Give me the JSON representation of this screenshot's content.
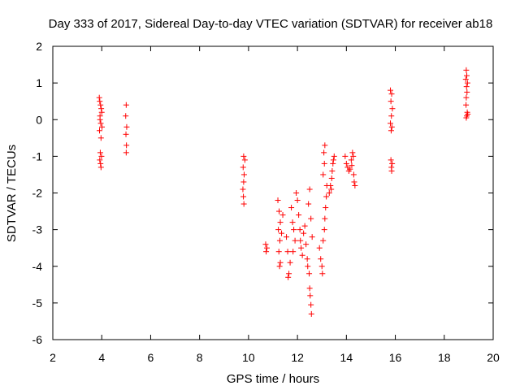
{
  "chart_data": {
    "type": "scatter",
    "title": "Day 333 of 2017, Sidereal Day-to-day VTEC variation (SDTVAR) for receiver ab18",
    "xlabel": "GPS time / hours",
    "ylabel": "SDTVAR / TECUs",
    "xlim": [
      2,
      20
    ],
    "ylim": [
      -6,
      2
    ],
    "xticks": [
      2,
      4,
      6,
      8,
      10,
      12,
      14,
      16,
      18,
      20
    ],
    "yticks": [
      -6,
      -5,
      -4,
      -3,
      -2,
      -1,
      0,
      1,
      2
    ],
    "grid": false,
    "marker": "+",
    "marker_color": "#ff0000",
    "series": [
      {
        "name": "SDTVAR",
        "points": [
          [
            3.9,
            0.6
          ],
          [
            3.92,
            0.5
          ],
          [
            3.95,
            0.4
          ],
          [
            3.98,
            0.3
          ],
          [
            4.0,
            0.2
          ],
          [
            3.93,
            0.1
          ],
          [
            3.96,
            -0.1
          ],
          [
            3.91,
            -0.3
          ],
          [
            3.97,
            -0.5
          ],
          [
            3.94,
            -0.9
          ],
          [
            3.99,
            -1.0
          ],
          [
            3.92,
            -1.1
          ],
          [
            3.95,
            -1.2
          ],
          [
            3.97,
            -1.3
          ],
          [
            3.93,
            0.0
          ],
          [
            4.01,
            -0.2
          ],
          [
            5.0,
            0.4
          ],
          [
            4.98,
            0.1
          ],
          [
            5.02,
            -0.2
          ],
          [
            4.99,
            -0.4
          ],
          [
            5.01,
            -0.7
          ],
          [
            5.0,
            -0.9
          ],
          [
            9.8,
            -1.0
          ],
          [
            9.85,
            -1.1
          ],
          [
            9.78,
            -1.3
          ],
          [
            9.82,
            -1.5
          ],
          [
            9.8,
            -1.7
          ],
          [
            9.77,
            -1.9
          ],
          [
            9.79,
            -2.1
          ],
          [
            9.81,
            -2.3
          ],
          [
            10.7,
            -3.4
          ],
          [
            10.75,
            -3.5
          ],
          [
            10.72,
            -3.6
          ],
          [
            11.2,
            -2.2
          ],
          [
            11.25,
            -2.5
          ],
          [
            11.3,
            -2.8
          ],
          [
            11.22,
            -3.0
          ],
          [
            11.28,
            -3.3
          ],
          [
            11.24,
            -3.6
          ],
          [
            11.3,
            -3.9
          ],
          [
            11.27,
            -4.0
          ],
          [
            11.35,
            -3.1
          ],
          [
            11.4,
            -2.6
          ],
          [
            11.55,
            -3.2
          ],
          [
            11.6,
            -3.6
          ],
          [
            11.65,
            -4.2
          ],
          [
            11.62,
            -4.3
          ],
          [
            11.7,
            -3.9
          ],
          [
            11.75,
            -2.4
          ],
          [
            11.8,
            -2.8
          ],
          [
            11.85,
            -3.0
          ],
          [
            11.9,
            -3.3
          ],
          [
            11.82,
            -3.6
          ],
          [
            11.95,
            -2.0
          ],
          [
            12.0,
            -2.2
          ],
          [
            12.05,
            -2.6
          ],
          [
            12.1,
            -3.0
          ],
          [
            12.12,
            -3.3
          ],
          [
            12.15,
            -3.5
          ],
          [
            12.2,
            -3.7
          ],
          [
            12.25,
            -3.1
          ],
          [
            12.3,
            -2.9
          ],
          [
            12.35,
            -3.4
          ],
          [
            12.4,
            -3.8
          ],
          [
            12.45,
            -2.3
          ],
          [
            12.5,
            -1.9
          ],
          [
            12.55,
            -2.7
          ],
          [
            12.6,
            -3.2
          ],
          [
            12.42,
            -4.0
          ],
          [
            12.48,
            -4.2
          ],
          [
            12.5,
            -4.6
          ],
          [
            12.52,
            -4.8
          ],
          [
            12.55,
            -5.05
          ],
          [
            12.57,
            -5.3
          ],
          [
            12.9,
            -3.5
          ],
          [
            12.95,
            -3.8
          ],
          [
            13.0,
            -4.0
          ],
          [
            13.02,
            -4.2
          ],
          [
            13.05,
            -3.3
          ],
          [
            13.1,
            -3.0
          ],
          [
            13.12,
            -2.7
          ],
          [
            13.15,
            -2.4
          ],
          [
            13.18,
            -2.1
          ],
          [
            13.2,
            -1.8
          ],
          [
            13.05,
            -1.5
          ],
          [
            13.1,
            -1.2
          ],
          [
            13.08,
            -0.9
          ],
          [
            13.12,
            -0.7
          ],
          [
            13.3,
            -2.0
          ],
          [
            13.35,
            -1.8
          ],
          [
            13.4,
            -1.6
          ],
          [
            13.42,
            -1.4
          ],
          [
            13.45,
            -1.2
          ],
          [
            13.5,
            -1.0
          ],
          [
            13.38,
            -1.9
          ],
          [
            13.47,
            -1.1
          ],
          [
            13.95,
            -1.0
          ],
          [
            14.0,
            -1.2
          ],
          [
            14.05,
            -1.3
          ],
          [
            14.1,
            -1.4
          ],
          [
            14.2,
            -1.1
          ],
          [
            14.25,
            -0.9
          ],
          [
            14.3,
            -1.5
          ],
          [
            14.32,
            -1.7
          ],
          [
            14.35,
            -1.8
          ],
          [
            14.28,
            -1.0
          ],
          [
            14.22,
            -1.25
          ],
          [
            14.15,
            -1.35
          ],
          [
            15.8,
            0.8
          ],
          [
            15.85,
            0.7
          ],
          [
            15.82,
            0.5
          ],
          [
            15.88,
            0.3
          ],
          [
            15.84,
            0.1
          ],
          [
            15.8,
            -0.1
          ],
          [
            15.86,
            -0.2
          ],
          [
            15.83,
            -0.3
          ],
          [
            15.82,
            -1.1
          ],
          [
            15.87,
            -1.2
          ],
          [
            15.84,
            -1.3
          ],
          [
            15.85,
            -1.4
          ],
          [
            18.9,
            1.35
          ],
          [
            18.92,
            1.2
          ],
          [
            18.88,
            1.1
          ],
          [
            18.95,
            1.0
          ],
          [
            18.91,
            0.9
          ],
          [
            18.93,
            0.75
          ],
          [
            18.9,
            0.6
          ],
          [
            18.89,
            0.4
          ],
          [
            18.94,
            0.2
          ],
          [
            18.92,
            0.1
          ],
          [
            18.9,
            0.05
          ],
          [
            18.96,
            0.15
          ]
        ]
      }
    ]
  }
}
